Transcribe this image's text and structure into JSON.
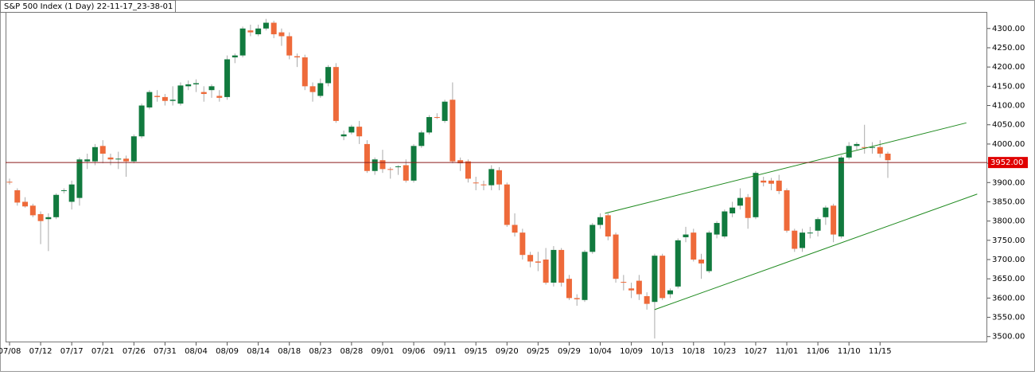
{
  "chart_data": {
    "type": "candlestick",
    "title": "S&P 500 Index (1 Day) 22-11-17_23-38-01",
    "categories": [
      "07/08",
      null,
      null,
      null,
      "07/12",
      null,
      null,
      null,
      "07/17",
      null,
      null,
      null,
      "07/21",
      null,
      null,
      null,
      "07/26",
      null,
      null,
      null,
      "07/31",
      null,
      null,
      null,
      "08/04",
      null,
      null,
      null,
      "08/09",
      null,
      null,
      null,
      "08/14",
      null,
      null,
      null,
      "08/18",
      null,
      null,
      null,
      "08/23",
      null,
      null,
      null,
      "08/28",
      null,
      null,
      null,
      "09/01",
      null,
      null,
      null,
      "09/06",
      null,
      null,
      null,
      "09/11",
      null,
      null,
      null,
      "09/15",
      null,
      null,
      null,
      "09/20",
      null,
      null,
      null,
      "09/25",
      null,
      null,
      null,
      "09/29",
      null,
      null,
      null,
      "10/04",
      null,
      null,
      null,
      "10/09",
      null,
      null,
      null,
      "10/13",
      null,
      null,
      null,
      "10/18",
      null,
      null,
      null,
      "10/23",
      null,
      null,
      null,
      "10/27",
      null,
      null,
      null,
      "11/01",
      null,
      null,
      null,
      "11/06",
      null,
      null,
      null,
      "11/10",
      null,
      null,
      null,
      "11/15",
      null
    ],
    "ohlc": [
      [
        3902,
        3910,
        3895,
        3900
      ],
      [
        3880,
        3885,
        3840,
        3848
      ],
      [
        3850,
        3862,
        3835,
        3838
      ],
      [
        3840,
        3845,
        3810,
        3815
      ],
      [
        3818,
        3825,
        3740,
        3800
      ],
      [
        3805,
        3820,
        3722,
        3810
      ],
      [
        3810,
        3872,
        3805,
        3868
      ],
      [
        3878,
        3885,
        3872,
        3880
      ],
      [
        3850,
        3905,
        3830,
        3895
      ],
      [
        3860,
        3965,
        3840,
        3960
      ],
      [
        3955,
        3975,
        3935,
        3960
      ],
      [
        3955,
        4000,
        3945,
        3992
      ],
      [
        3995,
        4010,
        3950,
        3975
      ],
      [
        3965,
        3975,
        3945,
        3960
      ],
      [
        3960,
        3980,
        3935,
        3962
      ],
      [
        3962,
        3970,
        3915,
        3955
      ],
      [
        3955,
        4025,
        3950,
        4020
      ],
      [
        4020,
        4105,
        4015,
        4100
      ],
      [
        4095,
        4140,
        4090,
        4135
      ],
      [
        4125,
        4140,
        4110,
        4122
      ],
      [
        4122,
        4130,
        4100,
        4112
      ],
      [
        4112,
        4150,
        4100,
        4115
      ],
      [
        4105,
        4160,
        4100,
        4152
      ],
      [
        4150,
        4165,
        4140,
        4155
      ],
      [
        4155,
        4168,
        4135,
        4158
      ],
      [
        4135,
        4150,
        4110,
        4130
      ],
      [
        4140,
        4155,
        4120,
        4150
      ],
      [
        4125,
        4140,
        4110,
        4120
      ],
      [
        4122,
        4230,
        4115,
        4220
      ],
      [
        4225,
        4235,
        4210,
        4230
      ],
      [
        4230,
        4305,
        4225,
        4300
      ],
      [
        4295,
        4310,
        4280,
        4290
      ],
      [
        4285,
        4310,
        4280,
        4300
      ],
      [
        4300,
        4325,
        4295,
        4315
      ],
      [
        4315,
        4320,
        4275,
        4285
      ],
      [
        4290,
        4300,
        4255,
        4280
      ],
      [
        4280,
        4290,
        4220,
        4230
      ],
      [
        4228,
        4235,
        4200,
        4225
      ],
      [
        4225,
        4232,
        4140,
        4150
      ],
      [
        4150,
        4160,
        4110,
        4135
      ],
      [
        4125,
        4170,
        4120,
        4158
      ],
      [
        4158,
        4205,
        4150,
        4200
      ],
      [
        4200,
        4210,
        4055,
        4060
      ],
      [
        4020,
        4035,
        4010,
        4025
      ],
      [
        4030,
        4050,
        4025,
        4045
      ],
      [
        4045,
        4060,
        4000,
        4020
      ],
      [
        4000,
        4010,
        3925,
        3930
      ],
      [
        3930,
        3965,
        3920,
        3960
      ],
      [
        3958,
        3985,
        3925,
        3935
      ],
      [
        3935,
        3940,
        3910,
        3933
      ],
      [
        3940,
        3945,
        3920,
        3942
      ],
      [
        3945,
        3960,
        3900,
        3905
      ],
      [
        3905,
        4000,
        3900,
        3995
      ],
      [
        3995,
        4035,
        3990,
        4030
      ],
      [
        4030,
        4075,
        4025,
        4070
      ],
      [
        4070,
        4080,
        4065,
        4068
      ],
      [
        4060,
        4115,
        4055,
        4110
      ],
      [
        4115,
        4160,
        3950,
        3955
      ],
      [
        3958,
        3965,
        3930,
        3950
      ],
      [
        3955,
        3960,
        3900,
        3910
      ],
      [
        3900,
        3915,
        3880,
        3898
      ],
      [
        3895,
        3905,
        3880,
        3893
      ],
      [
        3893,
        3945,
        3880,
        3935
      ],
      [
        3932,
        3940,
        3880,
        3895
      ],
      [
        3895,
        3900,
        3785,
        3790
      ],
      [
        3790,
        3820,
        3760,
        3770
      ],
      [
        3770,
        3780,
        3700,
        3712
      ],
      [
        3712,
        3720,
        3680,
        3695
      ],
      [
        3695,
        3720,
        3670,
        3692
      ],
      [
        3700,
        3730,
        3635,
        3640
      ],
      [
        3640,
        3735,
        3630,
        3725
      ],
      [
        3725,
        3730,
        3630,
        3640
      ],
      [
        3650,
        3660,
        3595,
        3600
      ],
      [
        3600,
        3610,
        3580,
        3597
      ],
      [
        3595,
        3725,
        3590,
        3720
      ],
      [
        3720,
        3795,
        3715,
        3790
      ],
      [
        3790,
        3820,
        3780,
        3810
      ],
      [
        3815,
        3820,
        3750,
        3760
      ],
      [
        3765,
        3770,
        3640,
        3650
      ],
      [
        3642,
        3660,
        3620,
        3640
      ],
      [
        3625,
        3640,
        3600,
        3620
      ],
      [
        3645,
        3660,
        3595,
        3610
      ],
      [
        3605,
        3615,
        3570,
        3585
      ],
      [
        3590,
        3715,
        3495,
        3710
      ],
      [
        3710,
        3715,
        3595,
        3600
      ],
      [
        3610,
        3625,
        3600,
        3620
      ],
      [
        3630,
        3755,
        3625,
        3750
      ],
      [
        3758,
        3785,
        3745,
        3765
      ],
      [
        3770,
        3780,
        3695,
        3700
      ],
      [
        3700,
        3715,
        3650,
        3690
      ],
      [
        3670,
        3775,
        3665,
        3770
      ],
      [
        3765,
        3800,
        3755,
        3795
      ],
      [
        3760,
        3830,
        3755,
        3825
      ],
      [
        3820,
        3850,
        3810,
        3835
      ],
      [
        3840,
        3885,
        3830,
        3860
      ],
      [
        3862,
        3870,
        3780,
        3808
      ],
      [
        3810,
        3930,
        3805,
        3925
      ],
      [
        3905,
        3915,
        3890,
        3900
      ],
      [
        3905,
        3912,
        3880,
        3897
      ],
      [
        3905,
        3920,
        3870,
        3878
      ],
      [
        3880,
        3885,
        3770,
        3775
      ],
      [
        3775,
        3780,
        3720,
        3728
      ],
      [
        3730,
        3780,
        3720,
        3770
      ],
      [
        3768,
        3785,
        3755,
        3770
      ],
      [
        3775,
        3810,
        3760,
        3805
      ],
      [
        3810,
        3840,
        3790,
        3835
      ],
      [
        3840,
        3845,
        3745,
        3765
      ],
      [
        3760,
        3970,
        3755,
        3965
      ],
      [
        3965,
        4005,
        3960,
        3995
      ],
      [
        3995,
        4005,
        3985,
        4000
      ],
      [
        3992,
        4050,
        3975,
        3990
      ],
      [
        3990,
        4005,
        3975,
        3992
      ],
      [
        3992,
        4010,
        3965,
        3975
      ],
      [
        3975,
        3980,
        3912,
        3958
      ]
    ],
    "up_color": "#117a3e",
    "down_color": "#ee6a3a",
    "ylim": [
      3485,
      4343
    ],
    "yticks": [
      {
        "value": 3500,
        "label": "3500.00"
      },
      {
        "value": 3550,
        "label": "3550.00"
      },
      {
        "value": 3600,
        "label": "3600.00"
      },
      {
        "value": 3650,
        "label": "3650.00"
      },
      {
        "value": 3700,
        "label": "3700.00"
      },
      {
        "value": 3750,
        "label": "3750.00"
      },
      {
        "value": 3800,
        "label": "3800.00"
      },
      {
        "value": 3850,
        "label": "3850.00"
      },
      {
        "value": 3900,
        "label": "3900.00"
      },
      {
        "value": 3950,
        "label": "3950.00"
      },
      {
        "value": 4000,
        "label": "4000.00"
      },
      {
        "value": 4050,
        "label": "4050.00"
      },
      {
        "value": 4100,
        "label": "4100.00"
      },
      {
        "value": 4150,
        "label": "4150.00"
      },
      {
        "value": 4200,
        "label": "4200.00"
      },
      {
        "value": 4250,
        "label": "4250.00"
      },
      {
        "value": 4300,
        "label": "4300.00"
      }
    ],
    "price_line": {
      "value": 3952,
      "label": "3952.00",
      "color": "#8b1a1a"
    },
    "trendlines": [
      {
        "x": [
          76.6,
          123.1
        ],
        "y": [
          3820,
          4055
        ],
        "color": "#1f8a1f"
      },
      {
        "x": [
          83,
          124.5
        ],
        "y": [
          3570,
          3870
        ],
        "color": "#1f8a1f"
      }
    ]
  }
}
